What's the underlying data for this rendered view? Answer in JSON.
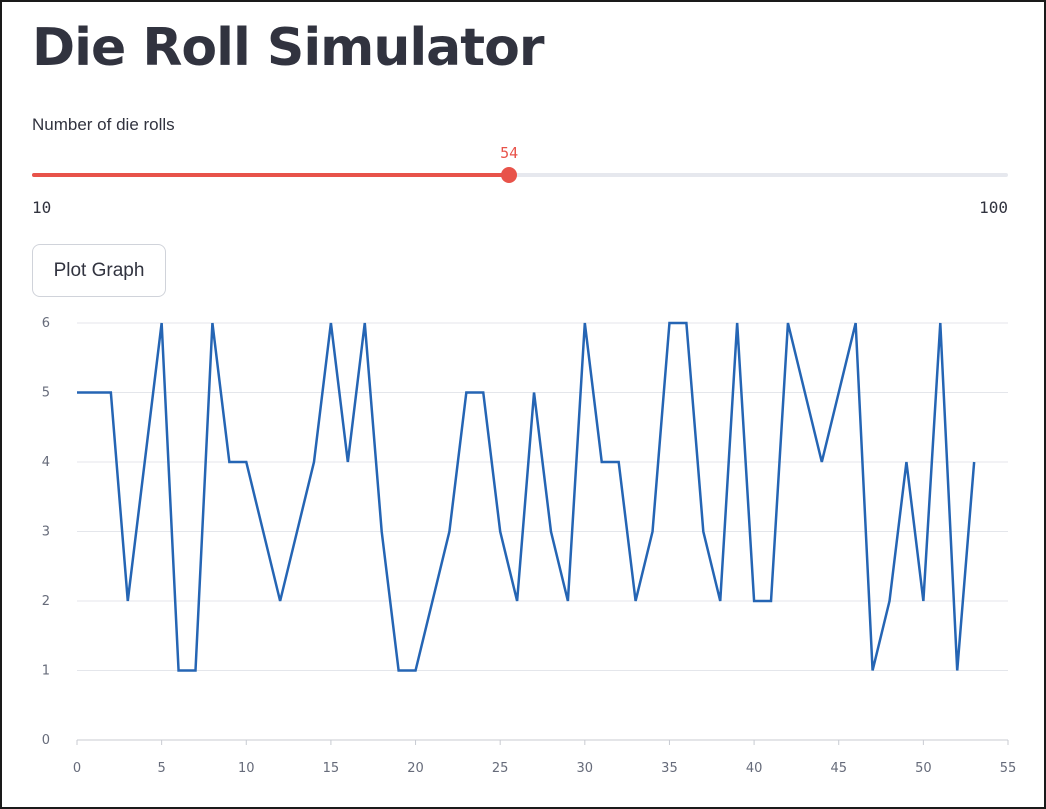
{
  "title": "Die Roll Simulator",
  "slider": {
    "label": "Number of die rolls",
    "value": 54,
    "value_label": "54",
    "min": 10,
    "min_label": "10",
    "max": 100,
    "max_label": "100",
    "accent_color": "#e8534a"
  },
  "button": {
    "label": "Plot Graph"
  },
  "chart_data": {
    "type": "line",
    "title": "",
    "xlabel": "",
    "ylabel": "",
    "xlim": [
      0,
      55
    ],
    "ylim": [
      0,
      6
    ],
    "x_ticks": [
      0,
      5,
      10,
      15,
      20,
      25,
      30,
      35,
      40,
      45,
      50,
      55
    ],
    "y_ticks": [
      0,
      1,
      2,
      3,
      4,
      5,
      6
    ],
    "grid": "horizontal",
    "series": [
      {
        "color": "#2565b4",
        "x": [
          0,
          1,
          2,
          3,
          4,
          5,
          6,
          7,
          8,
          9,
          10,
          11,
          12,
          13,
          14,
          15,
          16,
          17,
          18,
          19,
          20,
          21,
          22,
          23,
          24,
          25,
          26,
          27,
          28,
          29,
          30,
          31,
          32,
          33,
          34,
          35,
          36,
          37,
          38,
          39,
          40,
          41,
          42,
          43,
          44,
          45,
          46,
          47,
          48,
          49,
          50,
          51,
          52,
          53
        ],
        "values": [
          5,
          5,
          5,
          2,
          4,
          6,
          1,
          1,
          6,
          4,
          4,
          3,
          2,
          3,
          4,
          6,
          4,
          6,
          3,
          1,
          1,
          2,
          3,
          5,
          5,
          3,
          2,
          5,
          3,
          2,
          6,
          4,
          4,
          2,
          3,
          6,
          6,
          3,
          2,
          6,
          2,
          2,
          6,
          5,
          4,
          5,
          6,
          1,
          2,
          4,
          2,
          6,
          1,
          4
        ]
      }
    ]
  }
}
